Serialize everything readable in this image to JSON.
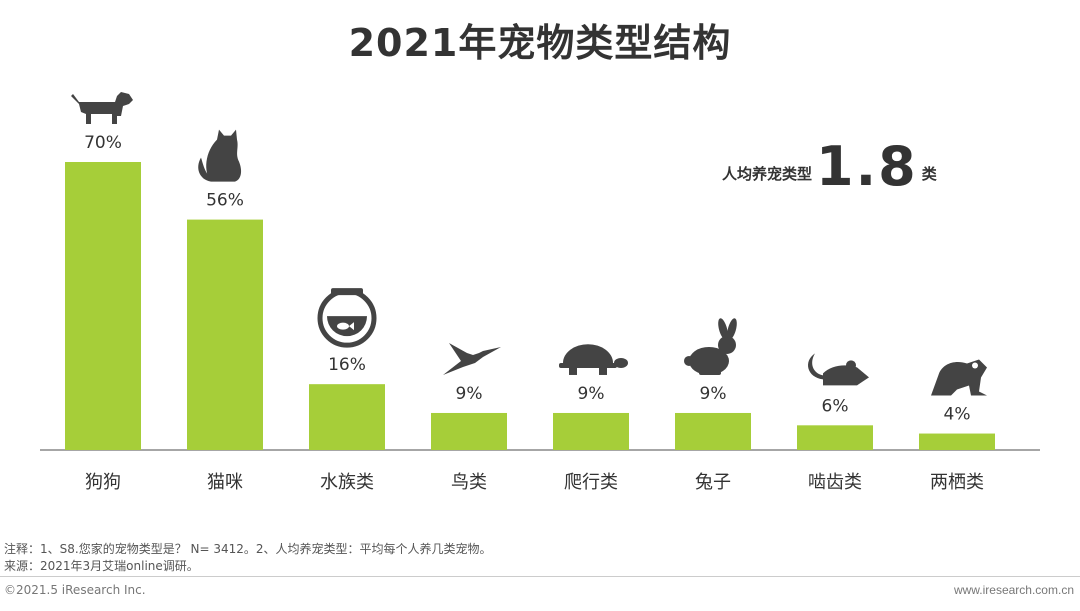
{
  "title": "2021年宠物类型结构",
  "stat": {
    "label": "人均养宠类型",
    "value": "1.8",
    "unit": "类"
  },
  "notes": {
    "line1": "注释：1、S8.您家的宠物类型是？ N= 3412。2、人均养宠类型：平均每个人养几类宠物。",
    "line2": "来源：2021年3月艾瑞online调研。"
  },
  "footer": {
    "copyright": "©2021.5 iResearch Inc.",
    "site": "www.iresearch.com.cn"
  },
  "colors": {
    "bar": "#a6ce39",
    "icon": "#444444",
    "text": "#333333",
    "axis": "#888888"
  },
  "chart_data": {
    "type": "bar",
    "title": "2021年宠物类型结构",
    "categories": [
      "狗狗",
      "猫咪",
      "水族类",
      "鸟类",
      "爬行类",
      "兔子",
      "啮齿类",
      "两栖类"
    ],
    "values": [
      70,
      56,
      16,
      9,
      9,
      9,
      6,
      4
    ],
    "value_labels": [
      "70%",
      "56%",
      "16%",
      "9%",
      "9%",
      "9%",
      "6%",
      "4%"
    ],
    "icons": [
      "dog-icon",
      "cat-icon",
      "fishbowl-icon",
      "bird-icon",
      "turtle-icon",
      "rabbit-icon",
      "rat-icon",
      "frog-icon"
    ],
    "unit": "%",
    "ylim": [
      0,
      70
    ],
    "grid": false,
    "legend": "none"
  }
}
